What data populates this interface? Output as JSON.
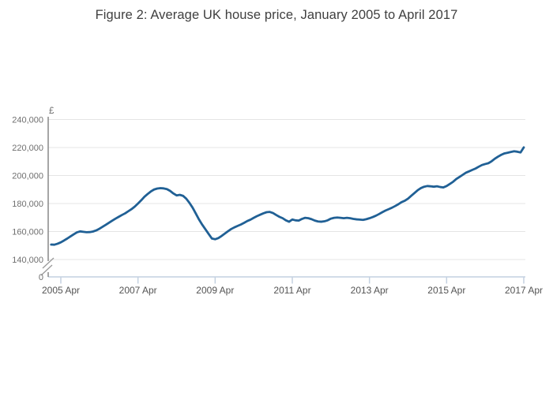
{
  "chart_data": {
    "type": "line",
    "title": "Figure 2: Average UK house price, January 2005 to April 2017",
    "y_axis_unit": "£",
    "xlabel": "",
    "ylabel": "£",
    "grid": true,
    "legend": "none",
    "line_color": "#206095",
    "axis_break_at_zero": true,
    "ylim_display": [
      140000,
      240000
    ],
    "y_ticks": [
      {
        "label": "240,000",
        "value": 240000
      },
      {
        "label": "220,000",
        "value": 220000
      },
      {
        "label": "200,000",
        "value": 200000
      },
      {
        "label": "180,000",
        "value": 180000
      },
      {
        "label": "160,000",
        "value": 160000
      },
      {
        "label": "140,000",
        "value": 140000
      },
      {
        "label": "0",
        "value": 0
      }
    ],
    "x_ticks": [
      {
        "label": "2005 Apr",
        "month_index": 3
      },
      {
        "label": "2007 Apr",
        "month_index": 27
      },
      {
        "label": "2009 Apr",
        "month_index": 51
      },
      {
        "label": "2011 Apr",
        "month_index": 75
      },
      {
        "label": "2013 Apr",
        "month_index": 99
      },
      {
        "label": "2015 Apr",
        "month_index": 123
      },
      {
        "label": "2017 Apr",
        "month_index": 147
      }
    ],
    "series": [
      {
        "name": "Average UK house price (£)",
        "frequency": "monthly",
        "start": "2005 Jan",
        "end": "2017 Apr",
        "values": [
          150700,
          150600,
          151300,
          152300,
          153600,
          155000,
          156500,
          158000,
          159400,
          160100,
          159800,
          159500,
          159600,
          160000,
          160800,
          162000,
          163400,
          164800,
          166300,
          167800,
          169200,
          170500,
          171800,
          173000,
          174500,
          176000,
          177800,
          180000,
          182300,
          184800,
          186800,
          188600,
          190000,
          190700,
          191000,
          190800,
          190300,
          189000,
          187200,
          185800,
          186200,
          185500,
          183500,
          180500,
          177000,
          172800,
          168500,
          164800,
          161500,
          158200,
          155000,
          154500,
          155300,
          156800,
          158500,
          160200,
          161800,
          163000,
          164000,
          165000,
          166200,
          167500,
          168500,
          169800,
          171000,
          172000,
          173000,
          173800,
          174000,
          173200,
          171800,
          170500,
          169500,
          168000,
          167000,
          168600,
          168000,
          167800,
          169000,
          169800,
          169500,
          168800,
          167800,
          167200,
          167000,
          167300,
          168000,
          169200,
          169800,
          170000,
          169800,
          169500,
          169800,
          169500,
          169000,
          168700,
          168500,
          168300,
          168800,
          169500,
          170300,
          171300,
          172500,
          173800,
          175000,
          176000,
          177000,
          178200,
          179500,
          181000,
          182000,
          183500,
          185500,
          187500,
          189500,
          191000,
          192000,
          192500,
          192300,
          192000,
          192300,
          191800,
          191500,
          192500,
          194000,
          195500,
          197500,
          199000,
          200500,
          202000,
          203000,
          204000,
          205000,
          206300,
          207500,
          208200,
          208800,
          210200,
          212000,
          213500,
          214800,
          215800,
          216300,
          216800,
          217300,
          217000,
          216500,
          220100
        ]
      }
    ]
  }
}
